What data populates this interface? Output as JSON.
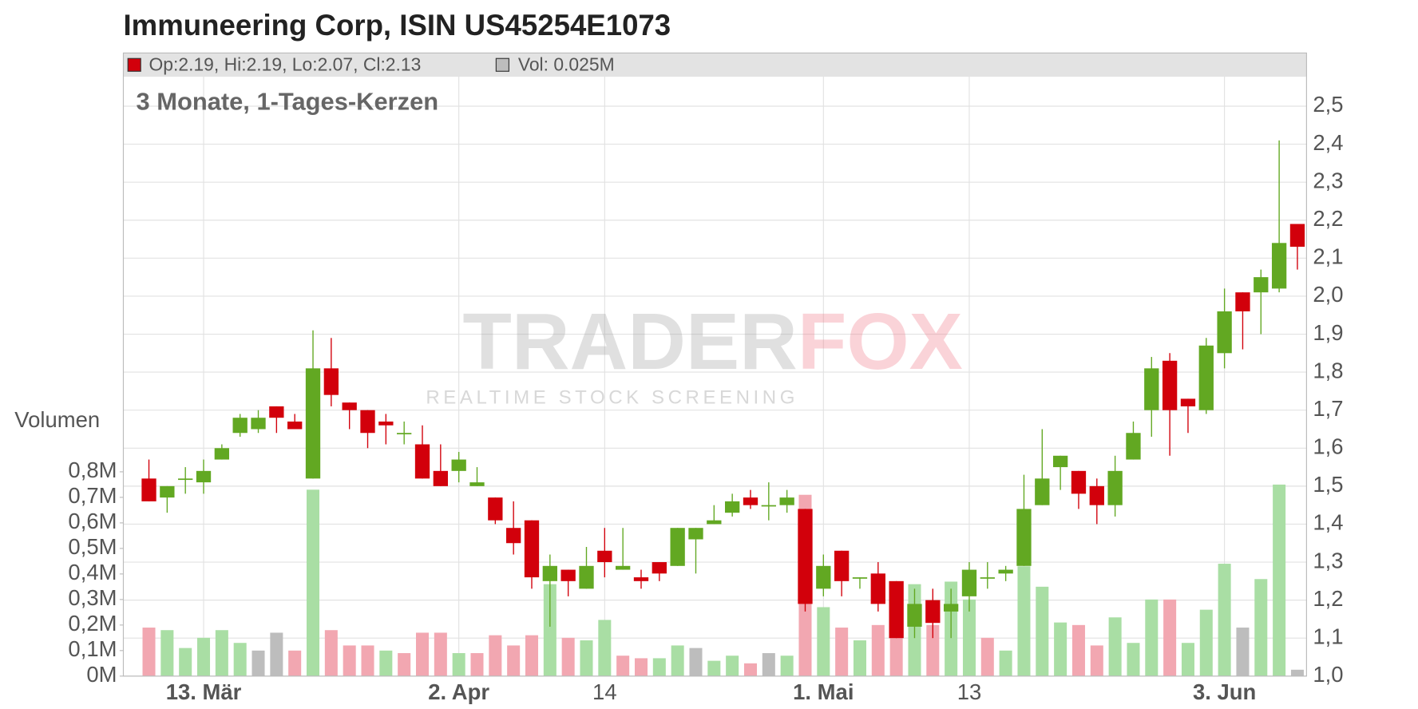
{
  "chart_data": {
    "type": "candlestick",
    "title": "Immuneering Corp, ISIN US45254E1073",
    "subtitle": "3 Monate, 1-Tages-Kerzen",
    "y2_label": "Volumen",
    "header": {
      "ohlc": "Op:2.19, Hi:2.19, Lo:2.07, Cl:2.13",
      "volume": "Vol: 0.025M"
    },
    "watermark": {
      "left": "TRADER",
      "right": "FOX",
      "tagline": "REALTIME STOCK SCREENING"
    },
    "categories": [
      null,
      null,
      null,
      "13. Mär",
      null,
      null,
      null,
      null,
      null,
      null,
      null,
      null,
      null,
      null,
      null,
      null,
      null,
      "2. Apr",
      null,
      null,
      null,
      null,
      null,
      null,
      null,
      "14",
      null,
      null,
      null,
      null,
      null,
      null,
      null,
      null,
      null,
      null,
      null,
      "1. Mai",
      null,
      null,
      null,
      null,
      null,
      null,
      null,
      "13",
      null,
      null,
      null,
      null,
      null,
      null,
      null,
      null,
      null,
      null,
      null,
      null,
      null,
      "3. Jun",
      null,
      null,
      null,
      null
    ],
    "open": [
      1.52,
      1.47,
      1.52,
      1.51,
      1.57,
      1.64,
      1.65,
      1.71,
      1.67,
      1.52,
      1.81,
      1.72,
      1.7,
      1.67,
      1.64,
      1.61,
      1.54,
      1.54,
      1.5,
      1.47,
      1.39,
      1.41,
      1.25,
      1.28,
      1.23,
      1.33,
      1.28,
      1.26,
      1.3,
      1.29,
      1.36,
      1.4,
      1.43,
      1.47,
      1.45,
      1.45,
      1.44,
      1.23,
      1.33,
      1.26,
      1.27,
      1.25,
      1.13,
      1.2,
      1.17,
      1.21,
      1.26,
      1.27,
      1.29,
      1.45,
      1.55,
      1.54,
      1.5,
      1.45,
      1.57,
      1.7,
      1.83,
      1.73,
      1.7,
      1.85,
      2.01,
      2.01,
      2.02,
      2.19
    ],
    "high": [
      1.57,
      1.5,
      1.55,
      1.57,
      1.61,
      1.69,
      1.7,
      1.71,
      1.69,
      1.91,
      1.89,
      1.72,
      1.7,
      1.69,
      1.67,
      1.66,
      1.61,
      1.59,
      1.55,
      1.47,
      1.46,
      1.41,
      1.32,
      1.28,
      1.34,
      1.39,
      1.39,
      1.28,
      1.3,
      1.39,
      1.39,
      1.45,
      1.48,
      1.49,
      1.51,
      1.49,
      1.44,
      1.32,
      1.33,
      1.26,
      1.3,
      1.25,
      1.23,
      1.23,
      1.23,
      1.3,
      1.3,
      1.29,
      1.53,
      1.65,
      1.58,
      1.54,
      1.52,
      1.58,
      1.67,
      1.84,
      1.85,
      1.73,
      1.89,
      2.02,
      2.01,
      2.07,
      2.41,
      2.19
    ],
    "low": [
      1.46,
      1.43,
      1.48,
      1.48,
      1.57,
      1.63,
      1.64,
      1.64,
      1.65,
      1.52,
      1.71,
      1.65,
      1.6,
      1.61,
      1.61,
      1.52,
      1.5,
      1.51,
      1.5,
      1.4,
      1.32,
      1.23,
      1.13,
      1.21,
      1.23,
      1.26,
      1.28,
      1.23,
      1.25,
      1.29,
      1.27,
      1.4,
      1.42,
      1.44,
      1.41,
      1.43,
      1.17,
      1.21,
      1.21,
      1.23,
      1.17,
      1.1,
      1.1,
      1.1,
      1.1,
      1.17,
      1.23,
      1.25,
      1.29,
      1.45,
      1.49,
      1.44,
      1.4,
      1.42,
      1.57,
      1.63,
      1.58,
      1.64,
      1.69,
      1.81,
      1.86,
      1.9,
      2.01,
      2.07
    ],
    "close": [
      1.46,
      1.5,
      1.52,
      1.54,
      1.6,
      1.68,
      1.68,
      1.68,
      1.65,
      1.81,
      1.74,
      1.7,
      1.64,
      1.66,
      1.64,
      1.52,
      1.5,
      1.57,
      1.51,
      1.41,
      1.35,
      1.26,
      1.29,
      1.25,
      1.29,
      1.3,
      1.29,
      1.25,
      1.27,
      1.39,
      1.39,
      1.41,
      1.46,
      1.45,
      1.45,
      1.47,
      1.19,
      1.29,
      1.25,
      1.26,
      1.19,
      1.1,
      1.19,
      1.14,
      1.19,
      1.28,
      1.26,
      1.28,
      1.44,
      1.52,
      1.58,
      1.48,
      1.45,
      1.54,
      1.64,
      1.81,
      1.7,
      1.71,
      1.87,
      1.96,
      1.96,
      2.05,
      2.14,
      2.13
    ],
    "volume": [
      0.19,
      0.18,
      0.11,
      0.15,
      0.18,
      0.13,
      0.1,
      0.17,
      0.1,
      0.73,
      0.18,
      0.12,
      0.12,
      0.1,
      0.09,
      0.17,
      0.17,
      0.09,
      0.09,
      0.16,
      0.12,
      0.16,
      0.36,
      0.15,
      0.14,
      0.22,
      0.08,
      0.07,
      0.07,
      0.12,
      0.11,
      0.06,
      0.08,
      0.05,
      0.09,
      0.08,
      0.71,
      0.27,
      0.19,
      0.14,
      0.2,
      0.15,
      0.36,
      0.2,
      0.37,
      0.3,
      0.15,
      0.1,
      0.43,
      0.35,
      0.21,
      0.2,
      0.12,
      0.23,
      0.13,
      0.3,
      0.3,
      0.13,
      0.26,
      0.44,
      0.19,
      0.38,
      0.75,
      0.025
    ],
    "volume_direction": [
      "down",
      "up",
      "up",
      "up",
      "up",
      "up",
      "flat",
      "flat",
      "down",
      "up",
      "down",
      "down",
      "down",
      "up",
      "down",
      "down",
      "down",
      "up",
      "down",
      "down",
      "down",
      "down",
      "up",
      "down",
      "up",
      "up",
      "down",
      "down",
      "up",
      "up",
      "flat",
      "up",
      "up",
      "down",
      "flat",
      "up",
      "down",
      "up",
      "down",
      "up",
      "down",
      "down",
      "up",
      "down",
      "up",
      "up",
      "down",
      "up",
      "up",
      "up",
      "up",
      "down",
      "down",
      "up",
      "up",
      "up",
      "down",
      "up",
      "up",
      "up",
      "flat",
      "up",
      "up",
      "flat"
    ],
    "volume_palette": {
      "up": "#a9dea4",
      "down": "#f2a7b1",
      "flat": "#bdbdbd"
    },
    "candle_colors": {
      "up": "#62a822",
      "down": "#d2000b"
    },
    "ylim": [
      1.0,
      2.64
    ],
    "yticks": [
      {
        "value": 1.0,
        "label": "1,0"
      },
      {
        "value": 1.1,
        "label": "1,1"
      },
      {
        "value": 1.2,
        "label": "1,2"
      },
      {
        "value": 1.3,
        "label": "1,3"
      },
      {
        "value": 1.4,
        "label": "1,4"
      },
      {
        "value": 1.5,
        "label": "1,5"
      },
      {
        "value": 1.6,
        "label": "1,6"
      },
      {
        "value": 1.7,
        "label": "1,7"
      },
      {
        "value": 1.8,
        "label": "1,8"
      },
      {
        "value": 1.9,
        "label": "1,9"
      },
      {
        "value": 2.0,
        "label": "2,0"
      },
      {
        "value": 2.1,
        "label": "2,1"
      },
      {
        "value": 2.2,
        "label": "2,2"
      },
      {
        "value": 2.3,
        "label": "2,3"
      },
      {
        "value": 2.4,
        "label": "2,4"
      },
      {
        "value": 2.5,
        "label": "2,5"
      }
    ],
    "y2lim": [
      0,
      2.44
    ],
    "y2ticks": [
      {
        "value": 0,
        "label": "0M"
      },
      {
        "value": 0.1,
        "label": "0,1M"
      },
      {
        "value": 0.2,
        "label": "0,2M"
      },
      {
        "value": 0.3,
        "label": "0,3M"
      },
      {
        "value": 0.4,
        "label": "0,4M"
      },
      {
        "value": 0.5,
        "label": "0,5M"
      },
      {
        "value": 0.6,
        "label": "0,6M"
      },
      {
        "value": 0.7,
        "label": "0,7M"
      },
      {
        "value": 0.8,
        "label": "0,8M"
      }
    ],
    "grid": true
  }
}
